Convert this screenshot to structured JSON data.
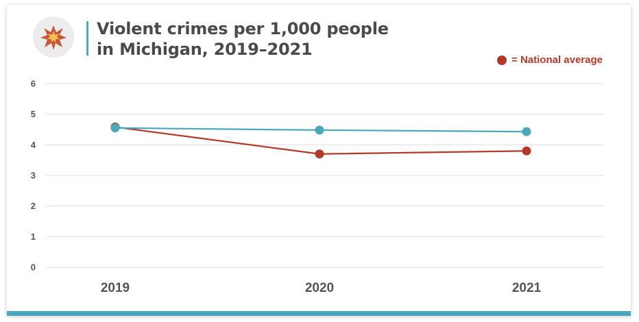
{
  "header": {
    "title_line1": "Violent crimes per 1,000 people",
    "title_line2": "in Michigan, 2019–2021",
    "logo_icon": "explosion-star-icon"
  },
  "legend": {
    "equals": "=",
    "label": "National average",
    "color": "#b33a2b"
  },
  "colors": {
    "michigan": "#4ba8bb",
    "national": "#b33a2b",
    "grid": "#dddddd",
    "bottom_bar": "#4ba8bb"
  },
  "chart_data": {
    "type": "line",
    "title": "Violent crimes per 1,000 people in Michigan, 2019–2021",
    "x": [
      "2019",
      "2020",
      "2021"
    ],
    "ylim": [
      0,
      6
    ],
    "yticks": [
      "0",
      "1",
      "2",
      "3",
      "4",
      "5",
      "6"
    ],
    "grid": true,
    "legend_position": "top-right",
    "series": [
      {
        "values": [
          4.55,
          4.48,
          4.43
        ],
        "color": "#4ba8bb"
      },
      {
        "name": "National average",
        "values": [
          4.58,
          3.7,
          3.8
        ],
        "color": "#b33a2b"
      }
    ]
  }
}
